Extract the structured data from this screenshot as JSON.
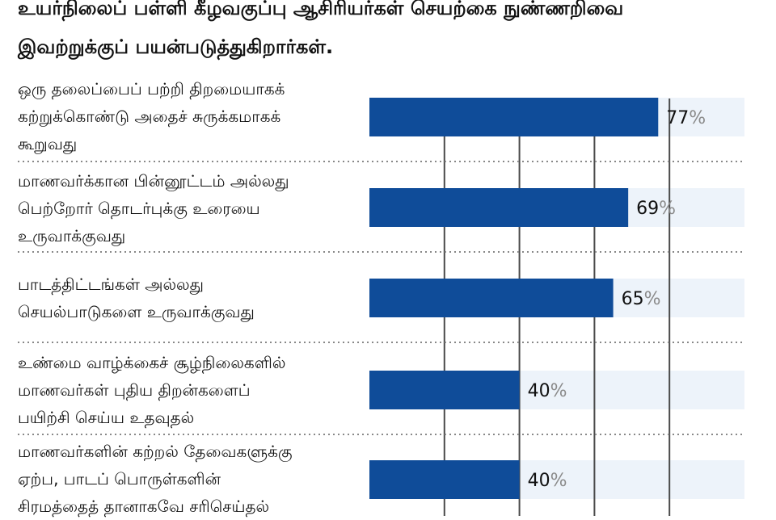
{
  "title_lines": [
    "உயர்நிலைப் பள்ளி கீழவகுப்பு ஆசிரியர்கள் செயற்கை நுண்ணறிவை",
    "இவற்றுக்குப் பயன்படுத்துகிறார்கள்."
  ],
  "colors": {
    "bar": "#0f4c99",
    "track": "#edf3fa",
    "gridline": "#4a4a4a",
    "separator": "#888888",
    "percent_sign": "#8a8a8a"
  },
  "chart_data": {
    "type": "bar",
    "orientation": "horizontal",
    "categories": [
      [
        "ஒரு தலைப்பைப் பற்றி திறமையாகக்",
        "கற்றுக்கொண்டு அதைச் சுருக்கமாகக்",
        "கூறுவது"
      ],
      [
        "மாணவர்க்கான பின்னூட்டம் அல்லது",
        "பெற்றோர் தொடர்புக்கு உரையை",
        "உருவாக்குவது"
      ],
      [
        "பாடத்திட்டங்கள் அல்லது",
        "செயல்பாடுகளை உருவாக்குவது"
      ],
      [
        "உண்மை வாழ்க்கைச் சூழ்நிலைகளில்",
        "மாணவர்கள் புதிய திறன்களைப்",
        "பயிற்சி செய்ய உதவுதல்"
      ],
      [
        "மாணவர்களின் கற்றல் தேவைகளுக்கு",
        "ஏற்ப, பாடப் பொருள்களின்",
        "சிரமத்தைத் தானாகவே சரிசெய்தல்"
      ]
    ],
    "values": [
      77,
      69,
      65,
      40,
      40
    ],
    "value_suffix": "%",
    "xlim": [
      0,
      100
    ],
    "grid": true
  }
}
